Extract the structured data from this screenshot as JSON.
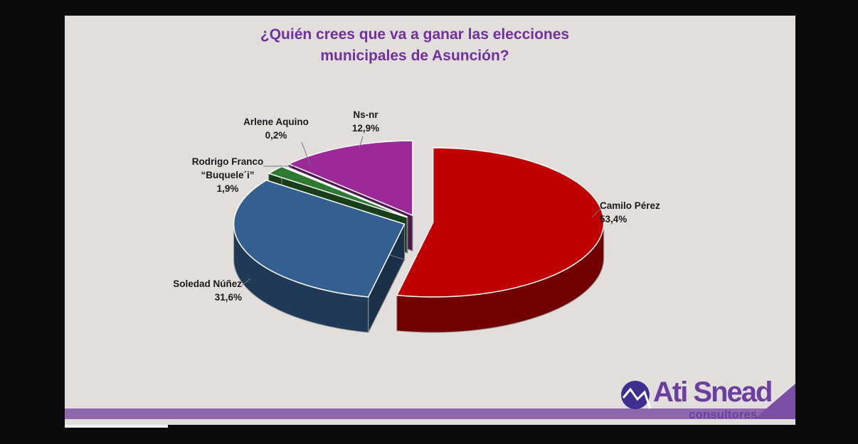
{
  "chart_data": {
    "type": "pie",
    "title": "¿Quién crees que va a ganar las elecciones municipales de Asunción?",
    "categories": [
      "Camilo Pérez",
      "Soledad Núñez",
      "Rodrigo Franco “Buquele´i”",
      "Arlene Aquino",
      "Ns-nr"
    ],
    "values": [
      53.4,
      31.6,
      1.9,
      0.2,
      12.9
    ],
    "value_labels": [
      "53,4%",
      "31,6%",
      "1,9%",
      "0,2%",
      "12,9%"
    ],
    "colors": [
      "#c00000",
      "#335f91",
      "#2e7a32",
      "#1f3d1f",
      "#9b2a98"
    ]
  },
  "logo": {
    "name": "Ati Snead",
    "tagline": "consultores"
  }
}
